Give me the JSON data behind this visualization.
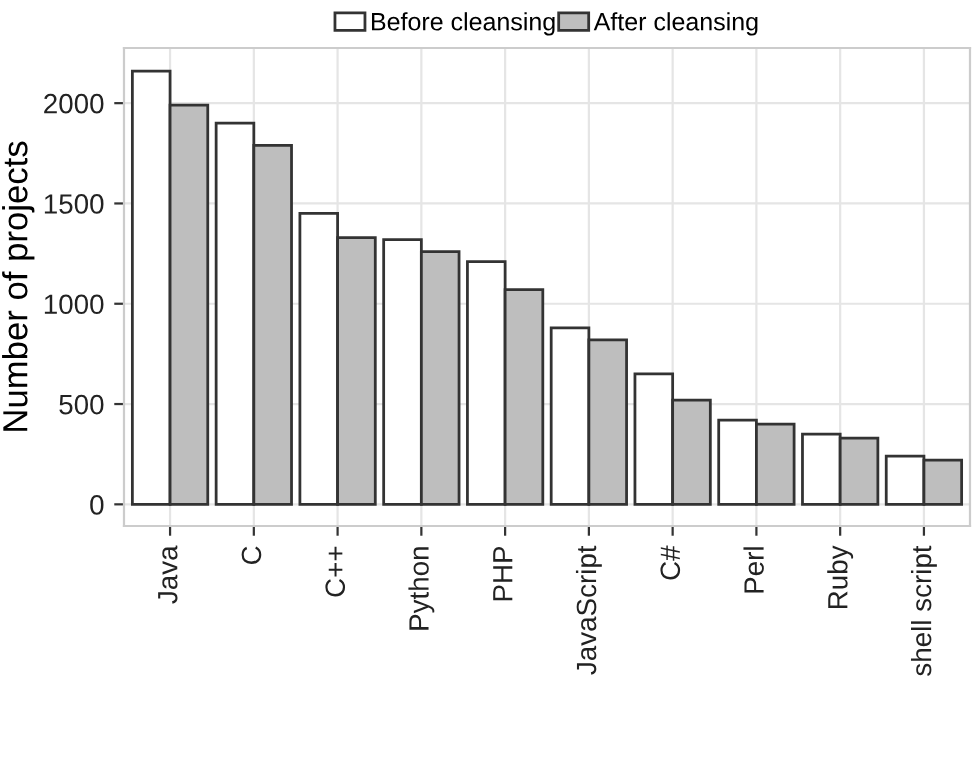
{
  "chart_data": {
    "type": "bar",
    "ylabel": "Number of projects",
    "categories": [
      "Java",
      "C",
      "C++",
      "Python",
      "PHP",
      "JavaScript",
      "C#",
      "Perl",
      "Ruby",
      "shell script"
    ],
    "series": [
      {
        "name": "Before cleansing",
        "color": "#ffffff",
        "values": [
          2160,
          1900,
          1450,
          1320,
          1210,
          880,
          650,
          420,
          350,
          240
        ]
      },
      {
        "name": "After cleansing",
        "color": "#bebebe",
        "values": [
          1990,
          1790,
          1330,
          1260,
          1070,
          820,
          520,
          400,
          330,
          220
        ]
      }
    ],
    "ylim": [
      -108,
      2275
    ],
    "yticks": [
      0,
      500,
      1000,
      1500,
      2000
    ],
    "grid": true,
    "legend": "top"
  }
}
